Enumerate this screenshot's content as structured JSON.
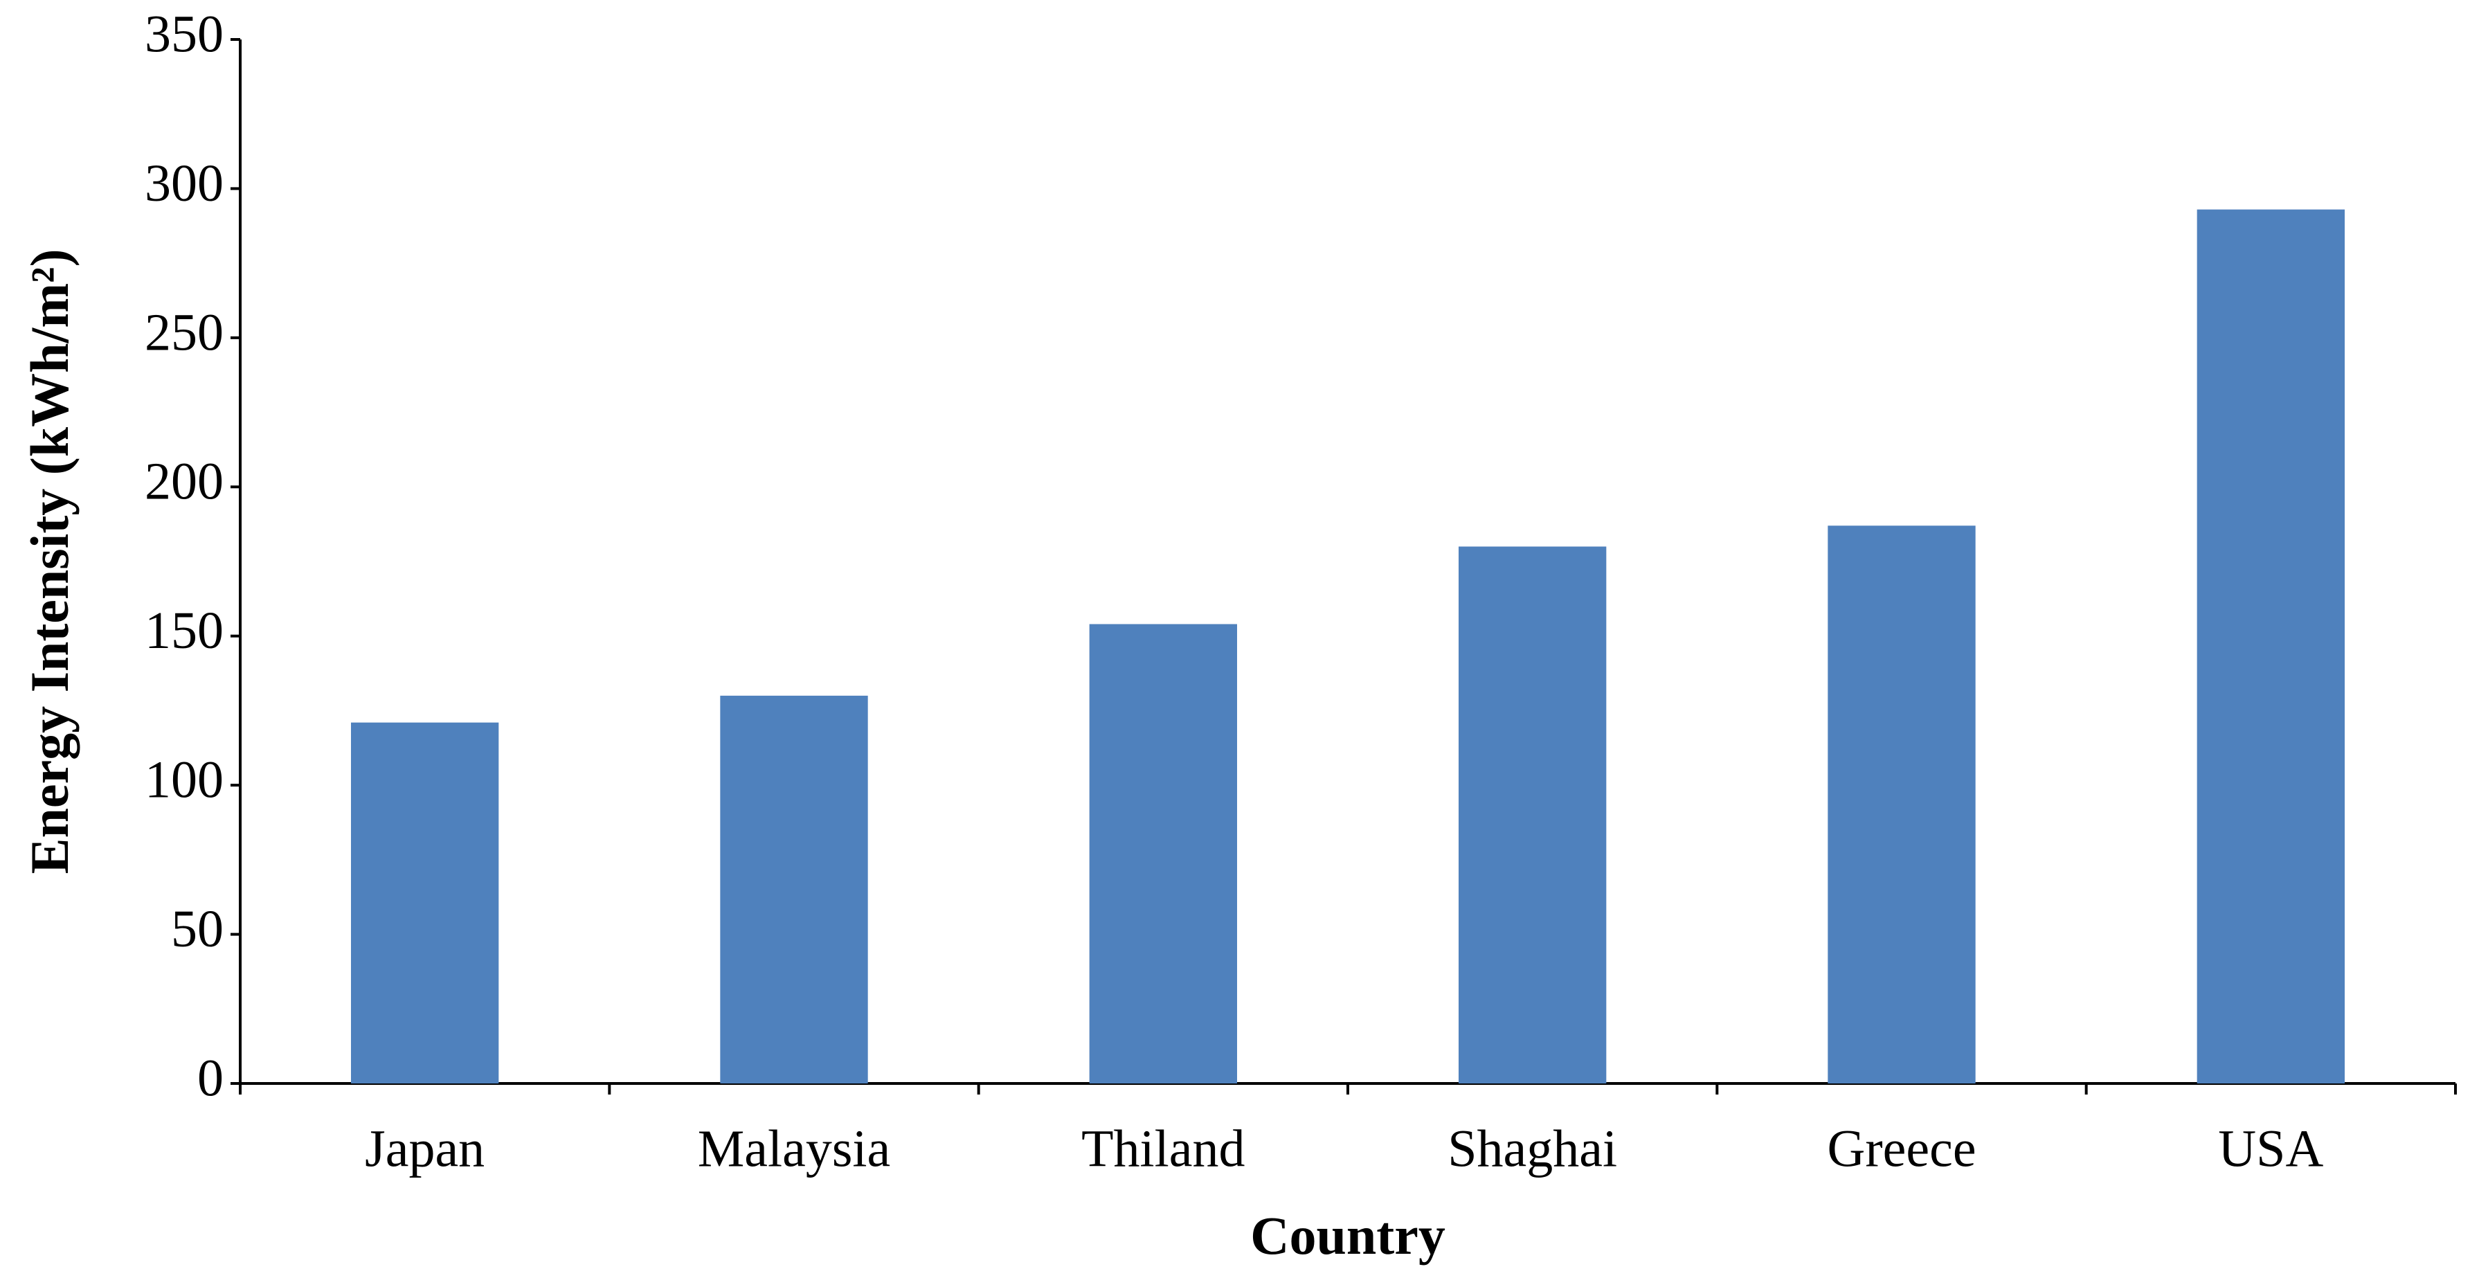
{
  "chart_data": {
    "type": "bar",
    "x_label": "Country",
    "y_label": "Energy Intensity (kWh/m²)",
    "categories": [
      "Japan",
      "Malaysia",
      "Thiland",
      "Shaghai",
      "Greece",
      "USA"
    ],
    "values": [
      121,
      130,
      154,
      180,
      187,
      293
    ],
    "color": "#4f81bd",
    "ylim": [
      0,
      350
    ],
    "yticks": [
      0,
      50,
      100,
      150,
      200,
      250,
      300,
      350
    ],
    "grid": false
  }
}
